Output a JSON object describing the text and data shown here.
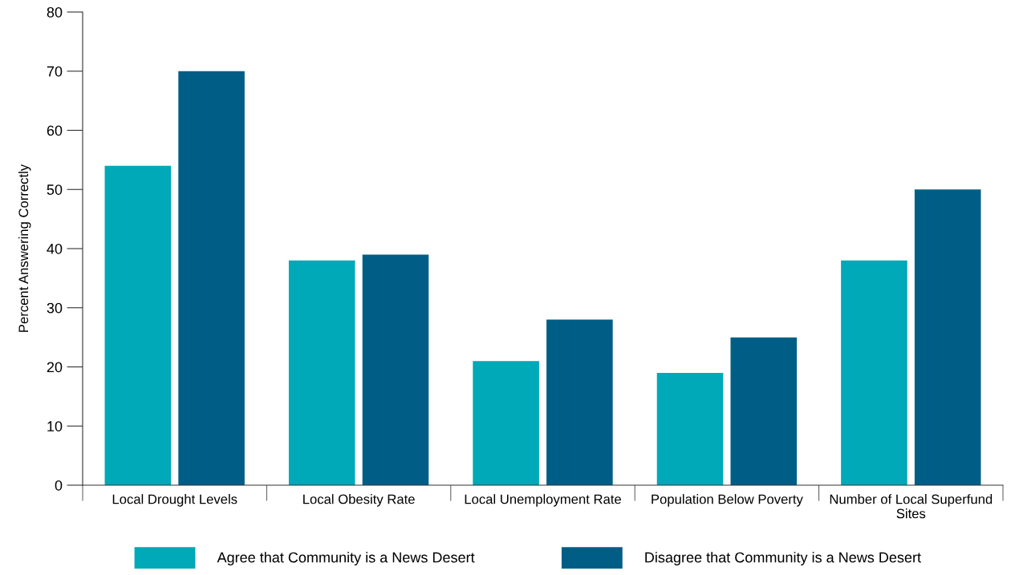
{
  "chart_data": {
    "type": "bar",
    "ylabel": "Percent Answering Correctly",
    "categories": [
      "Local Drought Levels",
      "Local Obesity Rate",
      "Local Unemployment Rate",
      "Population Below Poverty",
      "Number of Local Superfund Sites"
    ],
    "series": [
      {
        "name": "Agree that Community is a News Desert",
        "color": "#00a9b7",
        "values": [
          54,
          38,
          21,
          19,
          38
        ]
      },
      {
        "name": "Disagree that Community is a News Desert",
        "color": "#005e86",
        "values": [
          70,
          39,
          28,
          25,
          50
        ]
      }
    ],
    "ylim": [
      0,
      80
    ],
    "yticks": [
      0,
      10,
      20,
      30,
      40,
      50,
      60,
      70,
      80
    ],
    "grid": false,
    "legend": "bottom"
  }
}
